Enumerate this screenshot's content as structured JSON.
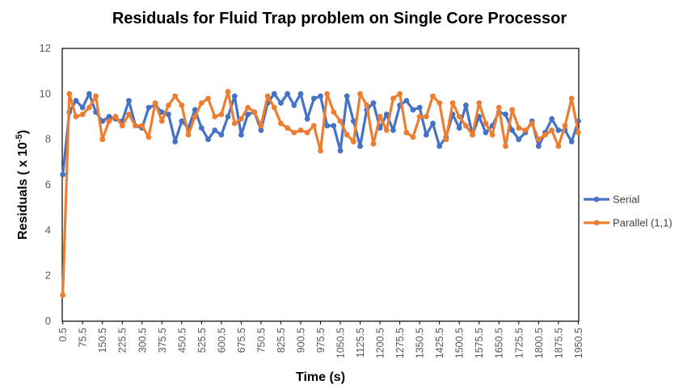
{
  "chart_data": {
    "type": "line",
    "title": "Residuals for Fluid Trap problem on Single Core Processor",
    "xlabel": "Time (s)",
    "ylabel": "Residuals ( x 10",
    "ylabel_sup": "-5",
    "ylabel_close": ")",
    "ylim": [
      0,
      12
    ],
    "yticks": [
      0,
      2,
      4,
      6,
      8,
      10,
      12
    ],
    "grid": false,
    "legend_position": "right",
    "x_tick_labels": [
      "0.5",
      "75.5",
      "150.5",
      "225.5",
      "300.5",
      "375.5",
      "450.5",
      "525.5",
      "600.5",
      "675.5",
      "750.5",
      "825.5",
      "900.5",
      "975.5",
      "1050.5",
      "1125.5",
      "1200.5",
      "1275.5",
      "1350.5",
      "1425.5",
      "1500.5",
      "1575.5",
      "1650.5",
      "1725.5",
      "1800.5",
      "1875.5",
      "1950.5"
    ],
    "x_start": 0.5,
    "x_step": 25,
    "series": [
      {
        "name": "Serial",
        "color": "#4472C4",
        "values": [
          6.45,
          9.2,
          9.7,
          9.4,
          10.0,
          9.2,
          8.8,
          9.0,
          8.9,
          8.8,
          9.7,
          8.6,
          8.5,
          9.4,
          9.5,
          9.2,
          9.1,
          7.9,
          8.8,
          8.5,
          9.3,
          8.5,
          8.0,
          8.4,
          8.2,
          9.0,
          9.9,
          8.2,
          9.1,
          9.2,
          8.4,
          9.6,
          10.0,
          9.6,
          10.0,
          9.5,
          10.0,
          8.9,
          9.8,
          9.9,
          8.6,
          8.6,
          7.5,
          9.9,
          8.8,
          7.7,
          9.3,
          9.6,
          8.5,
          9.1,
          8.4,
          9.5,
          9.7,
          9.3,
          9.4,
          8.2,
          8.7,
          7.7,
          8.1,
          9.1,
          8.5,
          9.5,
          8.2,
          9.0,
          8.3,
          8.6,
          9.2,
          9.1,
          8.4,
          8.0,
          8.3,
          8.8,
          7.7,
          8.3,
          8.9,
          8.4,
          8.4,
          7.9,
          8.8
        ]
      },
      {
        "name": "Parallel (1,1)",
        "color": "#ED7D31",
        "values": [
          1.15,
          10.0,
          9.0,
          9.1,
          9.4,
          9.9,
          8.0,
          8.8,
          9.0,
          8.6,
          9.1,
          8.6,
          8.6,
          8.1,
          9.6,
          8.8,
          9.5,
          9.9,
          9.5,
          8.2,
          9.0,
          9.6,
          9.8,
          9.0,
          9.1,
          10.1,
          8.7,
          8.9,
          9.4,
          9.2,
          8.6,
          9.9,
          9.4,
          8.7,
          8.5,
          8.3,
          8.4,
          8.3,
          8.6,
          7.5,
          10.0,
          9.2,
          8.8,
          8.2,
          7.9,
          10.0,
          9.5,
          7.8,
          9.0,
          8.4,
          9.8,
          10.0,
          8.3,
          8.1,
          9.0,
          9.0,
          9.9,
          9.6,
          8.0,
          9.6,
          9.0,
          8.6,
          8.2,
          9.6,
          8.7,
          8.2,
          9.4,
          7.7,
          9.3,
          8.5,
          8.4,
          8.7,
          8.0,
          8.2,
          8.4,
          7.7,
          8.6,
          9.8,
          8.3
        ]
      }
    ]
  }
}
